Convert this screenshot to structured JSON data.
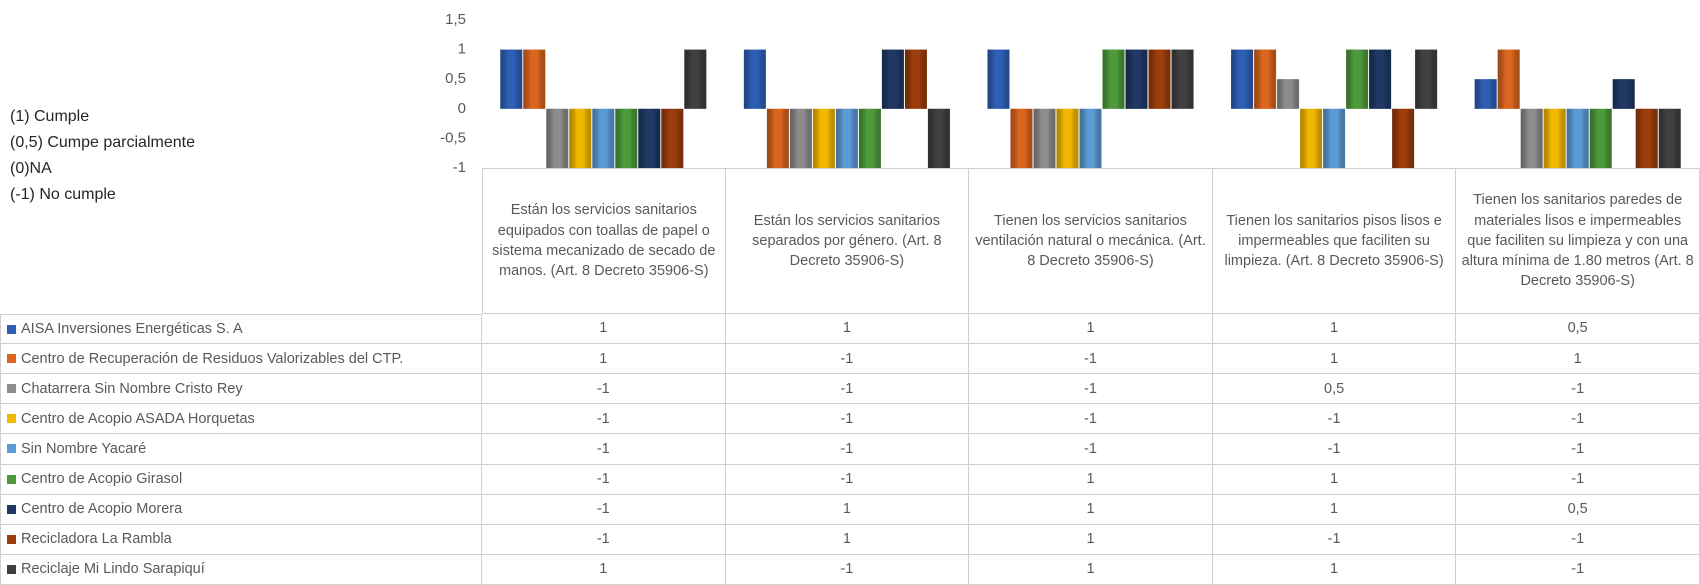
{
  "chart_data": {
    "type": "bar",
    "annotations": [
      "(1) Cumple",
      "(0,5) Cumpe parcialmente",
      "(0)NA",
      "(-1) No cumple"
    ],
    "categories": [
      "Están los servicios sanitarios equipados con toallas de papel o sistema mecanizado de secado de manos.      (Art. 8 Decreto 35906-S)",
      "Están los servicios sanitarios separados por género. (Art. 8 Decreto 35906-S)",
      "Tienen los servicios sanitarios ventilación natural o mecánica. (Art. 8 Decreto 35906-S)",
      "Tienen los sanitarios pisos lisos e impermeables que faciliten su limpieza. (Art. 8 Decreto 35906-S)",
      "Tienen los sanitarios paredes de materiales lisos e impermeables que faciliten su limpieza y con una altura mínima de 1.80 metros (Art. 8 Decreto 35906-S)"
    ],
    "series": [
      {
        "name": "AISA Inversiones Energéticas S. A",
        "color": "#2e5fb5",
        "values": [
          1,
          1,
          1,
          1,
          0.5
        ],
        "value_labels": [
          "1",
          "1",
          "1",
          "1",
          "0,5"
        ]
      },
      {
        "name": "Centro de Recuperación de Residuos Valorizables del CTP.",
        "color": "#d9651e",
        "values": [
          1,
          -1,
          -1,
          1,
          1
        ],
        "value_labels": [
          "1",
          "-1",
          "-1",
          "1",
          "1"
        ]
      },
      {
        "name": "Chatarrera Sin Nombre Cristo Rey",
        "color": "#8c8c8c",
        "values": [
          -1,
          -1,
          -1,
          0.5,
          -1
        ],
        "value_labels": [
          "-1",
          "-1",
          "-1",
          "0,5",
          "-1"
        ]
      },
      {
        "name": "Centro de Acopio ASADA Horquetas",
        "color": "#f2b800",
        "values": [
          -1,
          -1,
          -1,
          -1,
          -1
        ],
        "value_labels": [
          "-1",
          "-1",
          "-1",
          "-1",
          "-1"
        ]
      },
      {
        "name": "Sin Nombre Yacaré",
        "color": "#5b9bd5",
        "values": [
          -1,
          -1,
          -1,
          -1,
          -1
        ],
        "value_labels": [
          "-1",
          "-1",
          "-1",
          "-1",
          "-1"
        ]
      },
      {
        "name": "Centro de Acopio Girasol",
        "color": "#4e9a3a",
        "values": [
          -1,
          -1,
          1,
          1,
          -1
        ],
        "value_labels": [
          "-1",
          "-1",
          "1",
          "1",
          "-1"
        ]
      },
      {
        "name": "Centro de Acopio Morera",
        "color": "#1f3864",
        "values": [
          -1,
          1,
          1,
          1,
          0.5
        ],
        "value_labels": [
          "-1",
          "1",
          "1",
          "1",
          "0,5"
        ]
      },
      {
        "name": "Recicladora La Rambla",
        "color": "#9c3d0c",
        "values": [
          -1,
          1,
          1,
          -1,
          -1
        ],
        "value_labels": [
          "-1",
          "1",
          "1",
          "-1",
          "-1"
        ]
      },
      {
        "name": "Reciclaje Mi Lindo Sarapiquí",
        "color": "#404040",
        "values": [
          1,
          -1,
          1,
          1,
          -1
        ],
        "value_labels": [
          "1",
          "-1",
          "1",
          "1",
          "-1"
        ]
      }
    ],
    "ylim": [
      -1,
      1.5
    ],
    "yticks": [
      -1,
      {
        "value": -0.5,
        "label": "-0,5"
      },
      0,
      {
        "value": 0.5,
        "label": "0,5"
      },
      1,
      {
        "value": 1.5,
        "label": "1,5"
      }
    ],
    "grid": false
  }
}
